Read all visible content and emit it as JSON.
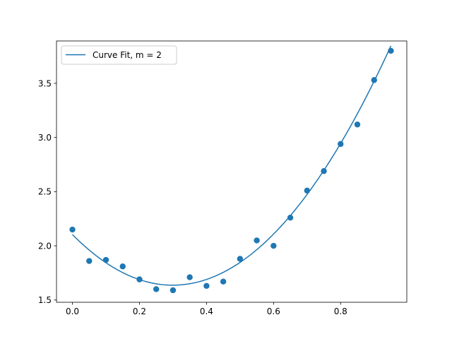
{
  "chart_data": {
    "type": "scatter",
    "title": "",
    "xlabel": "",
    "ylabel": "",
    "xlim": [
      -0.0475,
      0.9975
    ],
    "ylim": [
      1.479,
      3.891
    ],
    "grid": false,
    "legend": {
      "placement": "top-left",
      "entries": [
        "Curve Fit, m = 2"
      ]
    },
    "x_ticks": [
      {
        "value": 0.0,
        "label": "0.0"
      },
      {
        "value": 0.2,
        "label": "0.2"
      },
      {
        "value": 0.4,
        "label": "0.4"
      },
      {
        "value": 0.6,
        "label": "0.6"
      },
      {
        "value": 0.8,
        "label": "0.8"
      }
    ],
    "y_ticks": [
      {
        "value": 1.5,
        "label": "1.5"
      },
      {
        "value": 2.0,
        "label": "2.0"
      },
      {
        "value": 2.5,
        "label": "2.5"
      },
      {
        "value": 3.0,
        "label": "3.0"
      },
      {
        "value": 3.5,
        "label": "3.5"
      }
    ],
    "series": [
      {
        "name": "Curve Fit, m = 2",
        "kind": "line",
        "color": "#1f77b4",
        "fit_coefficients": [
          2.104,
          -3.122,
          5.216
        ],
        "x_range": [
          0.0,
          0.95
        ]
      },
      {
        "kind": "scatter",
        "color": "#1f77b4",
        "x": [
          0.0,
          0.05,
          0.1,
          0.15,
          0.2,
          0.25,
          0.3,
          0.35,
          0.4,
          0.45,
          0.5,
          0.55,
          0.6,
          0.65,
          0.7,
          0.75,
          0.8,
          0.85,
          0.9,
          0.95
        ],
        "y": [
          2.15,
          1.86,
          1.87,
          1.81,
          1.69,
          1.6,
          1.59,
          1.71,
          1.63,
          1.67,
          1.88,
          2.05,
          2.0,
          2.26,
          2.51,
          2.69,
          2.94,
          3.12,
          3.53,
          3.8
        ]
      }
    ]
  }
}
